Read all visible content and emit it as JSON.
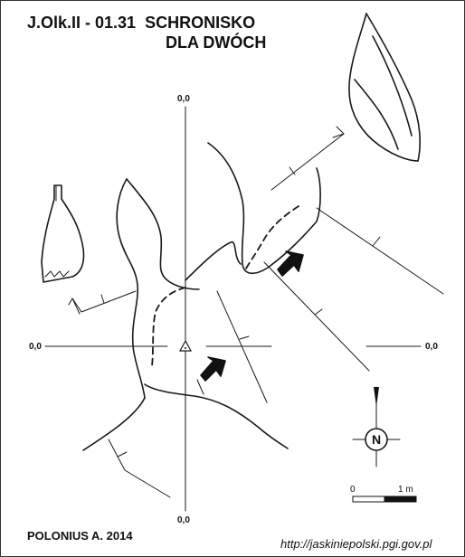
{
  "title": {
    "line1": "J.Olk.II - 01.31  SCHRONISKO",
    "line2": "DLA DWÓCH"
  },
  "grid": {
    "top_label": "0,0",
    "left_label": "0,0",
    "right_label": "0,0",
    "bottom_label": "0,0"
  },
  "compass": {
    "letter": "N"
  },
  "scale": {
    "zero_label": "0",
    "end_label": "1 m"
  },
  "author": "POLONIUS A. 2014",
  "source_url": "http://jaskiniepolski.pgi.gov.pl",
  "colors": {
    "ink": "#111111",
    "background": "#ffffff"
  }
}
